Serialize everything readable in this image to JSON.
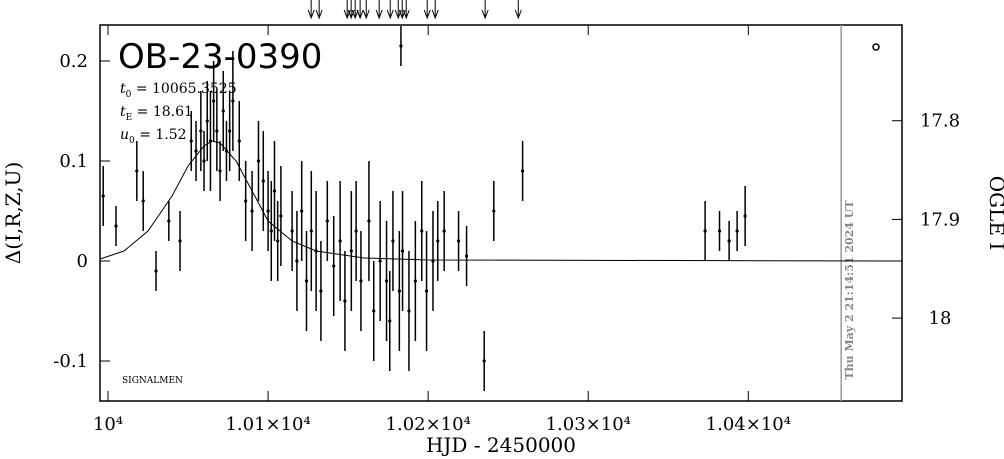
{
  "chart_data": {
    "type": "scatter",
    "title": "OB-23-0390",
    "params": [
      {
        "symbol": "t",
        "sub": "0",
        "text": " = 10065.3525"
      },
      {
        "symbol": "t",
        "sub": "E",
        "text": " = 18.61"
      },
      {
        "symbol": "u",
        "sub": "0",
        "text": " = 1.52"
      }
    ],
    "note": "SIGNALMEN",
    "timestamp": "Thu May  2 21:14:51 2024 UT",
    "x_label": "HJD - 2450000",
    "y_label": "Δ(I,R,Z,U)",
    "y2_label": "OGLE I",
    "xlim": [
      9995,
      10496
    ],
    "ylim": [
      -0.14,
      0.236
    ],
    "y2lim": [
      18.084,
      17.703
    ],
    "xticks": [
      {
        "value": 10000,
        "label": "10⁴"
      },
      {
        "value": 10100,
        "label": "1.01×10⁴"
      },
      {
        "value": 10200,
        "label": "1.02×10⁴"
      },
      {
        "value": 10300,
        "label": "1.03×10⁴"
      },
      {
        "value": 10400,
        "label": "1.04×10⁴"
      }
    ],
    "yticks": [
      -0.1,
      0,
      0.1,
      0.2
    ],
    "y2ticks": [
      17.8,
      17.9,
      18
    ],
    "color": "#000000",
    "now_x": 10458,
    "arrows_x": [
      10126.9,
      10131.9,
      10149.4,
      10151.9,
      10154.4,
      10157.5,
      10161.3,
      10169.4,
      10176.3,
      10181.3,
      10183.8,
      10186.3,
      10199.4,
      10204.4,
      10235.6,
      10256.3
    ],
    "x": [
      9997,
      10005,
      10018,
      10022,
      10030,
      10038,
      10045,
      10052,
      10055,
      10058,
      10060,
      10062,
      10064,
      10066,
      10068,
      10070,
      10072,
      10074,
      10076,
      10078,
      10082,
      10086,
      10090,
      10094,
      10097,
      10100,
      10102,
      10104,
      10106,
      10108,
      10115,
      10118,
      10121,
      10124,
      10127,
      10130,
      10133,
      10137,
      10141,
      10145,
      10148,
      10152,
      10155,
      10158,
      10163,
      10166,
      10170,
      10174,
      10176,
      10178,
      10182,
      10183,
      10184,
      10188,
      10192,
      10196,
      10199,
      10203,
      10206,
      10210,
      10219,
      10224,
      10235,
      10241,
      10259,
      10373,
      10382,
      10388,
      10393,
      10398
    ],
    "values": [
      0.065,
      0.035,
      0.09,
      0.06,
      -0.01,
      0.04,
      0.02,
      0.12,
      0.11,
      0.13,
      0.1,
      0.14,
      0.12,
      0.16,
      0.13,
      0.09,
      0.15,
      0.11,
      0.13,
      0.16,
      0.12,
      0.06,
      0.05,
      0.1,
      0.08,
      0.05,
      0.03,
      0.07,
      0.02,
      0.045,
      0.03,
      0.0,
      0.05,
      -0.02,
      0.03,
      0.01,
      -0.03,
      0.04,
      -0.005,
      0.02,
      -0.04,
      0.01,
      0.03,
      -0.02,
      0.04,
      -0.05,
      0.0,
      -0.02,
      -0.06,
      0.02,
      -0.03,
      0.215,
      0.01,
      -0.05,
      -0.02,
      0.03,
      -0.03,
      0.0,
      0.02,
      0.03,
      0.02,
      0.005,
      -0.1,
      0.05,
      0.09,
      0.03,
      0.03,
      0.02,
      0.03,
      0.045
    ],
    "errors": [
      0.03,
      0.02,
      0.03,
      0.03,
      0.02,
      0.02,
      0.03,
      0.03,
      0.03,
      0.04,
      0.03,
      0.04,
      0.05,
      0.04,
      0.04,
      0.03,
      0.04,
      0.03,
      0.04,
      0.05,
      0.04,
      0.04,
      0.04,
      0.04,
      0.05,
      0.04,
      0.05,
      0.05,
      0.04,
      0.05,
      0.04,
      0.05,
      0.05,
      0.05,
      0.06,
      0.06,
      0.05,
      0.04,
      0.05,
      0.06,
      0.05,
      0.06,
      0.05,
      0.05,
      0.06,
      0.05,
      0.06,
      0.06,
      0.05,
      0.05,
      0.06,
      0.02,
      0.06,
      0.06,
      0.06,
      0.05,
      0.06,
      0.05,
      0.04,
      0.04,
      0.03,
      0.03,
      0.03,
      0.03,
      0.03,
      0.03,
      0.02,
      0.02,
      0.02,
      0.03
    ],
    "model": {
      "x": [
        9995,
        10010,
        10025,
        10040,
        10050,
        10060,
        10065,
        10070,
        10080,
        10090,
        10100,
        10115,
        10130,
        10160,
        10200,
        10496
      ],
      "values": [
        0.002,
        0.01,
        0.03,
        0.065,
        0.095,
        0.115,
        0.12,
        0.118,
        0.1,
        0.07,
        0.04,
        0.02,
        0.01,
        0.003,
        0.001,
        0
      ]
    }
  }
}
